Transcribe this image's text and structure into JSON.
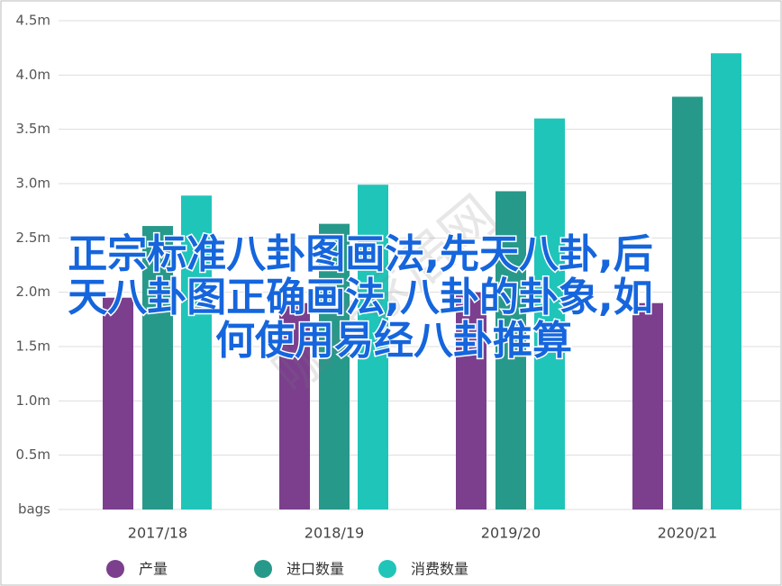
{
  "chart_data": {
    "type": "bar",
    "categories": [
      "2017/18",
      "2018/19",
      "2019/20",
      "2020/21"
    ],
    "series": [
      {
        "name": "产量",
        "color": "#7b3f8e",
        "values": [
          1.95,
          1.9,
          2.0,
          1.9
        ]
      },
      {
        "name": "进口数量",
        "color": "#27998a",
        "values": [
          2.61,
          2.63,
          2.93,
          3.8
        ]
      },
      {
        "name": "消费数量",
        "color": "#20c5b9",
        "values": [
          2.89,
          2.99,
          3.6,
          4.2
        ]
      }
    ],
    "ylim": [
      0,
      4.5
    ],
    "yticks": [
      {
        "value": 0,
        "label": "bags"
      },
      {
        "value": 0.5,
        "label": "0.5m"
      },
      {
        "value": 1,
        "label": "1.0m"
      },
      {
        "value": 1.5,
        "label": "1.5m"
      },
      {
        "value": 2,
        "label": "2.0m"
      },
      {
        "value": 2.5,
        "label": "2.5m"
      },
      {
        "value": 3,
        "label": "3.0m"
      },
      {
        "value": 3.5,
        "label": "3.5m"
      },
      {
        "value": 4,
        "label": "4.0m"
      },
      {
        "value": 4.5,
        "label": "4.5m"
      }
    ],
    "grid": true,
    "legend": "bottom",
    "overlay_text": [
      "正宗标准八卦图画法,先天八卦,后",
      "天八卦图正确画法,八卦的卦象,如",
      "何使用易经八卦推算"
    ],
    "watermark": "咖啡家居网"
  }
}
